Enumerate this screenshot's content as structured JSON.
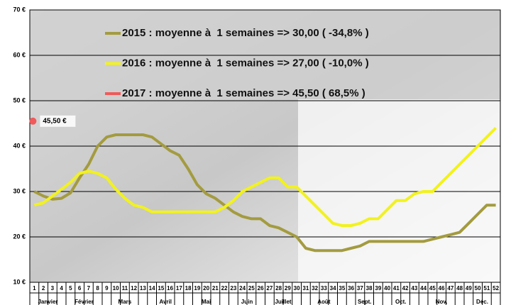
{
  "chart_data": {
    "type": "line",
    "x": [
      1,
      2,
      3,
      4,
      5,
      6,
      7,
      8,
      9,
      10,
      11,
      12,
      13,
      14,
      15,
      16,
      17,
      18,
      19,
      20,
      21,
      22,
      23,
      24,
      25,
      26,
      27,
      28,
      29,
      30,
      31,
      32,
      33,
      34,
      35,
      36,
      37,
      38,
      39,
      40,
      41,
      42,
      43,
      44,
      45,
      46,
      47,
      48,
      49,
      50,
      51,
      52
    ],
    "xlim": [
      0.5,
      52.5
    ],
    "month_labels": [
      "Janvier",
      null,
      null,
      null,
      "Février",
      null,
      null,
      null,
      "Mars",
      null,
      null,
      null,
      null,
      "Avril",
      null,
      null,
      null,
      "Mai",
      null,
      null,
      null,
      null,
      "Juin",
      null,
      null,
      null,
      "Juillet",
      null,
      null,
      null,
      "Août",
      null,
      null,
      null,
      null,
      "Sept.",
      null,
      null,
      null,
      "Oct.",
      null,
      null,
      null,
      "Nov.",
      null,
      null,
      null,
      null,
      "Déc.",
      null,
      null,
      null
    ],
    "ylim": [
      10,
      70
    ],
    "yticks": [
      {
        "value": 10,
        "label": "10 €"
      },
      {
        "value": 20,
        "label": "20 €"
      },
      {
        "value": 30,
        "label": "30 €"
      },
      {
        "value": 40,
        "label": "40 €"
      },
      {
        "value": 50,
        "label": "50 €"
      },
      {
        "value": 60,
        "label": "60 €"
      },
      {
        "value": 70,
        "label": "70 €"
      }
    ],
    "grid": true,
    "series": [
      {
        "name": "2015 : moyenne à  1 semaines => 30,00 ( -34,8% )",
        "color": "#a39b3f",
        "values": [
          30,
          29,
          28.3,
          28.5,
          29.7,
          33,
          36,
          40,
          42,
          42.5,
          42.5,
          42.5,
          42.5,
          42,
          40.5,
          39,
          38,
          35,
          31.5,
          29.5,
          28.5,
          27,
          25.5,
          24.5,
          24,
          24,
          22.5,
          22,
          21,
          20,
          17.5,
          17,
          17,
          17,
          17,
          17.5,
          18,
          19,
          19,
          19,
          19,
          19,
          19,
          19,
          19.5,
          20,
          20.5,
          21,
          23,
          25,
          27,
          27
        ]
      },
      {
        "name": "2016 : moyenne à  1 semaines => 27,00 ( -10,0% )",
        "color": "#f2f21e",
        "values": [
          27,
          27.5,
          29,
          30.5,
          32,
          34,
          34.5,
          34,
          33,
          30.5,
          28.5,
          27,
          26.5,
          25.5,
          25.5,
          25.5,
          25.5,
          25.5,
          25.5,
          25.5,
          25.5,
          26.5,
          28,
          30,
          31,
          32,
          33,
          33,
          31,
          31,
          29,
          27,
          25,
          23,
          22.5,
          22.5,
          23,
          24,
          24,
          26,
          28,
          28,
          29.5,
          30,
          30,
          32,
          34,
          36,
          38,
          40,
          42,
          44
        ]
      },
      {
        "name": "2017 : moyenne à  1 semaines => 45,50 ( 68,5% )",
        "color": "#f05a5a",
        "values": [
          45.5,
          null,
          null,
          null,
          null,
          null,
          null,
          null,
          null,
          null,
          null,
          null,
          null,
          null,
          null,
          null,
          null,
          null,
          null,
          null,
          null,
          null,
          null,
          null,
          null,
          null,
          null,
          null,
          null,
          null,
          null,
          null,
          null,
          null,
          null,
          null,
          null,
          null,
          null,
          null,
          null,
          null,
          null,
          null,
          null,
          null,
          null,
          null,
          null,
          null,
          null,
          null
        ],
        "value_labels": [
          "45,50 €",
          null,
          null,
          null,
          null,
          null,
          null,
          null,
          null,
          null,
          null,
          null,
          null,
          null,
          null,
          null,
          null,
          null,
          null,
          null,
          null,
          null,
          null,
          null,
          null,
          null,
          null,
          null,
          null,
          null,
          null,
          null,
          null,
          null,
          null,
          null,
          null,
          null,
          null,
          null,
          null,
          null,
          null,
          null,
          null,
          null,
          null,
          null,
          null,
          null,
          null,
          null
        ]
      }
    ]
  }
}
